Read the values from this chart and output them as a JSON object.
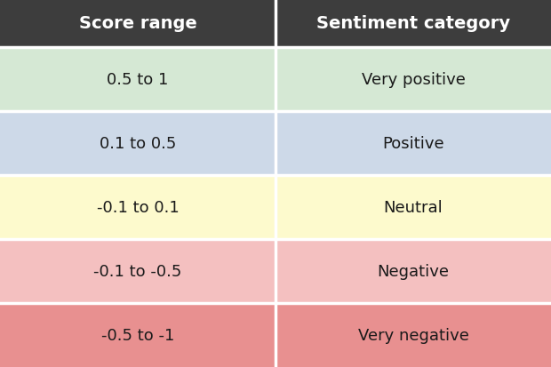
{
  "header_bg": "#3d3d3d",
  "header_text_color": "#ffffff",
  "header_fontsize": 14,
  "header_fontweight": "bold",
  "col1_header": "Score range",
  "col2_header": "Sentiment category",
  "rows": [
    {
      "score": "0.5 to 1",
      "category": "Very positive",
      "bg": "#d5e8d4"
    },
    {
      "score": "0.1 to 0.5",
      "category": "Positive",
      "bg": "#cdd9e8"
    },
    {
      "score": "-0.1 to 0.1",
      "category": "Neutral",
      "bg": "#fdfacd"
    },
    {
      "score": "-0.1 to -0.5",
      "category": "Negative",
      "bg": "#f4c0c0"
    },
    {
      "score": "-0.5 to -1",
      "category": "Very negative",
      "bg": "#e89090"
    }
  ],
  "cell_text_color": "#1a1a1a",
  "cell_fontsize": 13,
  "divider_color": "#ffffff",
  "divider_linewidth": 2.5,
  "figsize": [
    6.2,
    4.14
  ],
  "dpi": 100
}
